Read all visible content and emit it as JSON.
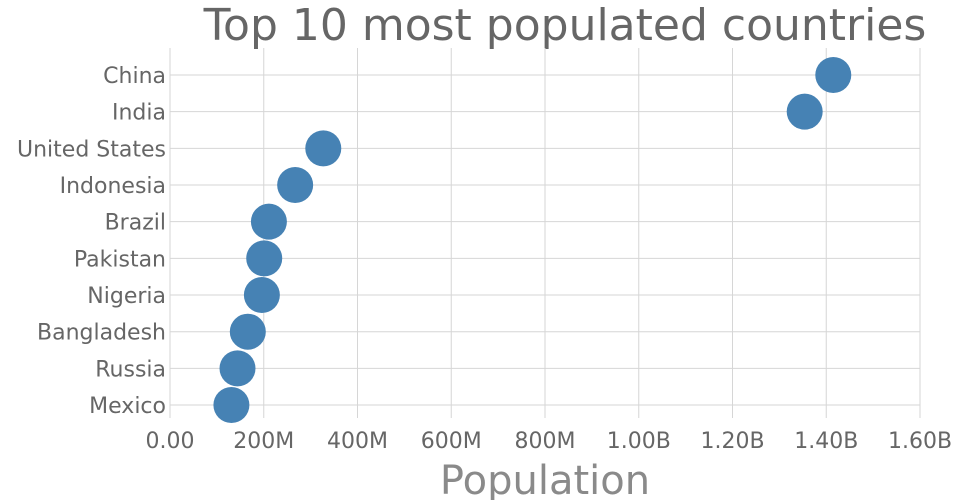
{
  "chart_data": {
    "type": "scatter",
    "title": "Top 10 most populated countries",
    "xlabel": "Population",
    "ylabel": "",
    "xlim": [
      0,
      1600000000
    ],
    "x_ticks": [
      0,
      200000000,
      400000000,
      600000000,
      800000000,
      1000000000,
      1200000000,
      1400000000,
      1600000000
    ],
    "x_tick_labels": [
      "0.00",
      "200M",
      "400M",
      "600M",
      "800M",
      "1.00B",
      "1.20B",
      "1.40B",
      "1.60B"
    ],
    "categories": [
      "China",
      "India",
      "United States",
      "Indonesia",
      "Brazil",
      "Pakistan",
      "Nigeria",
      "Bangladesh",
      "Russia",
      "Mexico"
    ],
    "values": [
      1415000000,
      1354000000,
      327000000,
      267000000,
      211000000,
      201000000,
      196000000,
      166000000,
      144000000,
      131000000
    ],
    "grid": true,
    "colors": {
      "marker": "#4682b4",
      "grid": "#d6d6d6",
      "text": "#666666"
    }
  }
}
